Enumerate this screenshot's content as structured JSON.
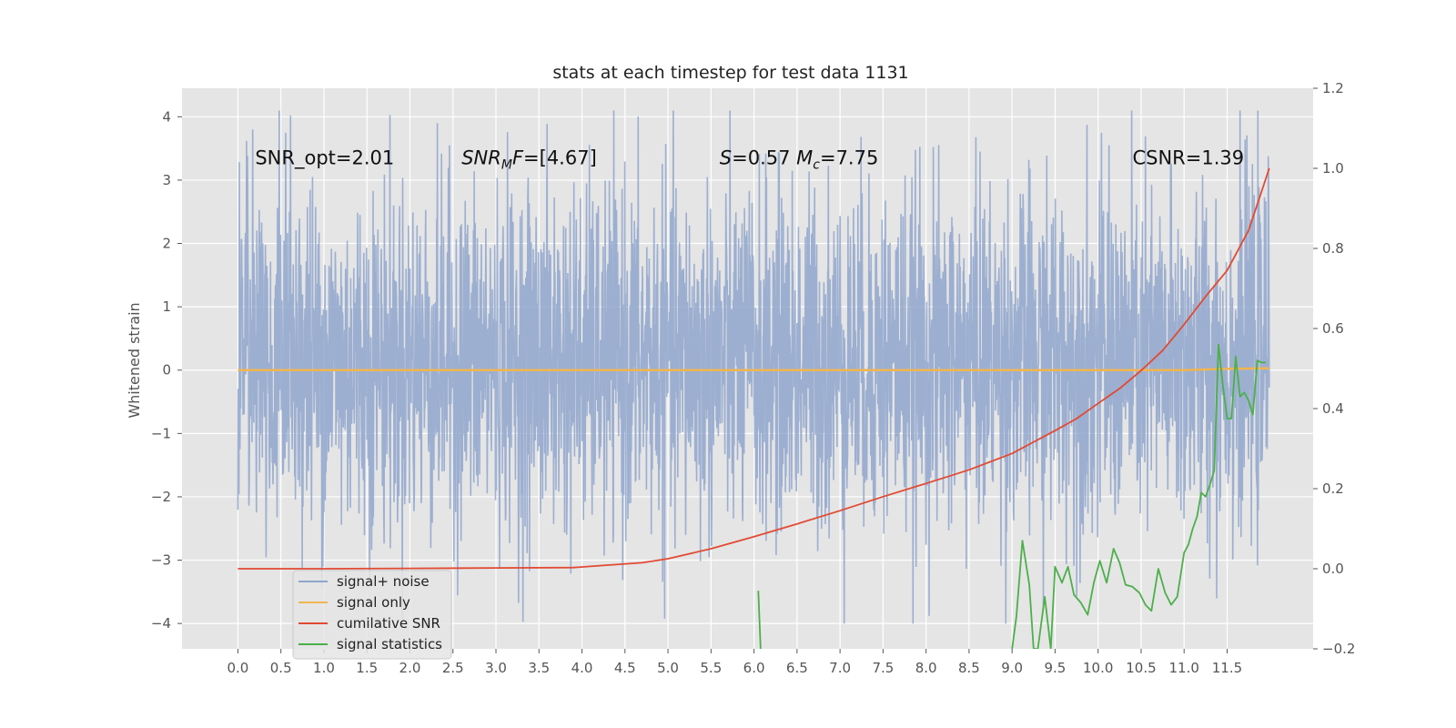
{
  "chart_data": {
    "type": "line",
    "title": "stats at each timestep for test data 1131",
    "ylabel": "Whitened strain",
    "ylabel_right": "",
    "xlim": [
      -0.65,
      12.5
    ],
    "ylim": [
      -4.4,
      4.45
    ],
    "ylim_right": [
      -0.2,
      1.2
    ],
    "xticks": [
      "0.0",
      "0.5",
      "1.0",
      "1.5",
      "2.0",
      "2.5",
      "3.0",
      "3.5",
      "4.0",
      "4.5",
      "5.0",
      "5.5",
      "6.0",
      "6.5",
      "7.0",
      "7.5",
      "8.0",
      "8.5",
      "9.0",
      "9.5",
      "10.0",
      "10.5",
      "11.0",
      "11.5"
    ],
    "yticks_left": [
      "4",
      "3",
      "2",
      "1",
      "0",
      "−1",
      "−2",
      "−3",
      "−4"
    ],
    "yticks_right": [
      "1.2",
      "1.0",
      "0.8",
      "0.6",
      "0.4",
      "0.2",
      "0.0",
      "−0.2"
    ],
    "grid": true,
    "legend_position": "lower-left",
    "annotations": [
      {
        "id": "snr_opt",
        "parts": [
          {
            "t": "SNR_opt=2.01"
          }
        ],
        "x": 0.2,
        "y": 3.25
      },
      {
        "id": "snr_mf",
        "parts": [
          {
            "t": "SNR",
            "i": true
          },
          {
            "t": "M",
            "i": true,
            "sub": true
          },
          {
            "t": "F",
            "i": true
          },
          {
            "t": "=[4.67]"
          }
        ],
        "x": 2.6,
        "y": 3.25
      },
      {
        "id": "s_mc",
        "parts": [
          {
            "t": "S",
            "i": true
          },
          {
            "t": "=0.57   "
          },
          {
            "t": "M",
            "i": true
          },
          {
            "t": "c",
            "i": true,
            "sub": true
          },
          {
            "t": "=7.75"
          }
        ],
        "x": 5.6,
        "y": 3.25
      },
      {
        "id": "csnr",
        "parts": [
          {
            "t": "CSNR=1.39"
          }
        ],
        "x": 10.4,
        "y": 3.25
      }
    ],
    "series": [
      {
        "name": "signal+ noise",
        "axis": "left",
        "color": "#8fa6cc",
        "kind": "noise",
        "x_range": [
          0.0,
          11.99
        ],
        "band": [
          -1.7,
          2.0
        ],
        "extremes_approx": [
          -4.0,
          4.1
        ]
      },
      {
        "name": "signal only",
        "axis": "left",
        "color": "#f0b451",
        "x": [
          0.0,
          6.0,
          10.0,
          11.0,
          11.5,
          11.99
        ],
        "y": [
          0.0,
          0.0,
          0.0,
          0.0,
          0.02,
          0.03
        ]
      },
      {
        "name": "cumilative SNR",
        "axis": "right",
        "color": "#e24a33",
        "x": [
          0.0,
          1.0,
          2.0,
          3.0,
          3.9,
          4.3,
          4.7,
          5.0,
          5.5,
          6.0,
          6.5,
          7.0,
          7.5,
          8.0,
          8.5,
          9.0,
          9.5,
          9.75,
          10.0,
          10.25,
          10.5,
          10.75,
          11.0,
          11.25,
          11.5,
          11.75,
          11.99
        ],
        "y": [
          0.0,
          0.0,
          0.001,
          0.002,
          0.003,
          0.009,
          0.015,
          0.025,
          0.05,
          0.08,
          0.112,
          0.145,
          0.18,
          0.213,
          0.247,
          0.288,
          0.345,
          0.375,
          0.413,
          0.45,
          0.495,
          0.545,
          0.61,
          0.68,
          0.745,
          0.845,
          1.0
        ]
      },
      {
        "name": "signal statistics",
        "axis": "right",
        "color": "#4daf4a",
        "segments": [
          {
            "x": [
              6.05,
              6.08
            ],
            "y": [
              -0.055,
              -0.22
            ]
          },
          {
            "x": [
              9.0,
              9.05,
              9.12,
              9.2,
              9.25,
              9.3,
              9.38,
              9.45,
              9.5,
              9.58,
              9.65,
              9.72,
              9.8,
              9.88,
              9.95,
              10.02,
              10.1,
              10.18,
              10.25,
              10.32,
              10.4,
              10.48,
              10.55,
              10.62,
              10.7,
              10.78,
              10.85,
              10.92,
              11.0,
              11.05,
              11.1,
              11.15,
              11.2,
              11.25,
              11.3,
              11.35,
              11.4,
              11.45,
              11.5,
              11.55,
              11.6,
              11.65,
              11.7,
              11.75,
              11.8,
              11.85,
              11.9,
              11.95
            ],
            "y": [
              -0.2,
              -0.12,
              0.07,
              -0.04,
              -0.2,
              -0.2,
              -0.07,
              -0.2,
              0.005,
              -0.035,
              0.005,
              -0.065,
              -0.085,
              -0.115,
              -0.035,
              0.02,
              -0.035,
              0.05,
              0.015,
              -0.04,
              -0.045,
              -0.06,
              -0.09,
              -0.105,
              0.0,
              -0.06,
              -0.09,
              -0.07,
              0.04,
              0.06,
              0.1,
              0.13,
              0.19,
              0.18,
              0.21,
              0.245,
              0.56,
              0.46,
              0.375,
              0.375,
              0.53,
              0.43,
              0.44,
              0.42,
              0.385,
              0.52,
              0.515,
              0.515
            ]
          }
        ]
      }
    ]
  }
}
